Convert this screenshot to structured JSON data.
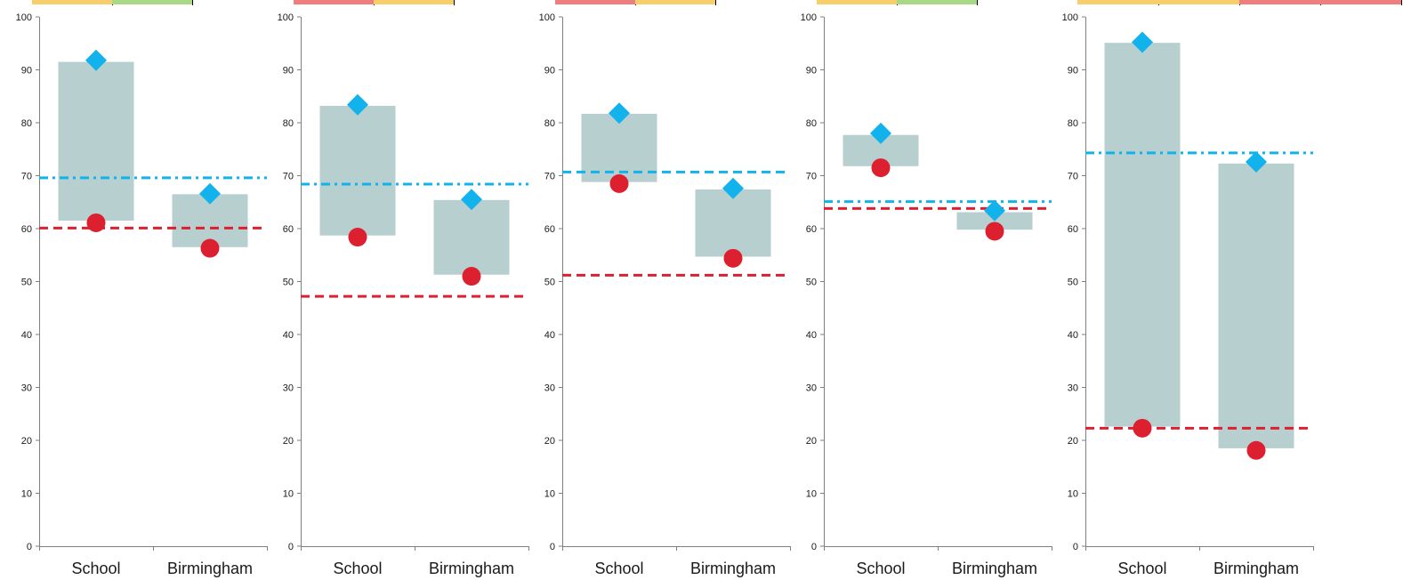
{
  "colors": {
    "range_fill": "#b7cfcf",
    "diamond": "#12b3ec",
    "circle": "#dd2030",
    "blue_line": "#12b3ec",
    "red_line": "#dd2030",
    "axis": "#7f7f7f",
    "text": "#1a1a1a",
    "status_red": "#ef7f7f",
    "status_amber": "#f8cd6b",
    "status_green": "#aad985"
  },
  "chart_data": [
    {
      "type": "range-bar",
      "categories": [
        "School",
        "Birmingham"
      ],
      "ylim": [
        0,
        100
      ],
      "yticks": [
        0,
        10,
        20,
        30,
        40,
        50,
        60,
        70,
        80,
        90,
        100
      ],
      "ranges": [
        [
          61.5,
          91.5
        ],
        [
          56.5,
          66.5
        ]
      ],
      "diamond_values": [
        91.8,
        66.6
      ],
      "circle_values": [
        61.1,
        56.3
      ],
      "blue_dashdot_line": 69.6,
      "red_dashed_line": 60.1,
      "status_cells": [
        "amber",
        "green"
      ]
    },
    {
      "type": "range-bar",
      "categories": [
        "School",
        "Birmingham"
      ],
      "ylim": [
        0,
        100
      ],
      "yticks": [
        0,
        10,
        20,
        30,
        40,
        50,
        60,
        70,
        80,
        90,
        100
      ],
      "ranges": [
        [
          58.7,
          83.2
        ],
        [
          51.3,
          65.4
        ]
      ],
      "diamond_values": [
        83.4,
        65.5
      ],
      "circle_values": [
        58.4,
        51.0
      ],
      "blue_dashdot_line": 68.4,
      "red_dashed_line": 47.2,
      "status_cells": [
        "red",
        "amber"
      ]
    },
    {
      "type": "range-bar",
      "categories": [
        "School",
        "Birmingham"
      ],
      "ylim": [
        0,
        100
      ],
      "yticks": [
        0,
        10,
        20,
        30,
        40,
        50,
        60,
        70,
        80,
        90,
        100
      ],
      "ranges": [
        [
          68.8,
          81.7
        ],
        [
          54.7,
          67.4
        ]
      ],
      "diamond_values": [
        81.8,
        67.6
      ],
      "circle_values": [
        68.5,
        54.4
      ],
      "blue_dashed_line": 70.7,
      "red_dashed_line": 51.2,
      "status_cells": [
        "red",
        "amber"
      ]
    },
    {
      "type": "range-bar",
      "categories": [
        "School",
        "Birmingham"
      ],
      "ylim": [
        0,
        100
      ],
      "yticks": [
        0,
        10,
        20,
        30,
        40,
        50,
        60,
        70,
        80,
        90,
        100
      ],
      "ranges": [
        [
          71.8,
          77.7
        ],
        [
          59.8,
          63.1
        ]
      ],
      "diamond_values": [
        78.0,
        63.4
      ],
      "circle_values": [
        71.5,
        59.5
      ],
      "blue_dashdot_line": 65.1,
      "red_dashed_line": 63.8,
      "status_cells": [
        "amber",
        "green"
      ]
    },
    {
      "type": "range-bar",
      "categories": [
        "School",
        "Birmingham"
      ],
      "ylim": [
        0,
        100
      ],
      "yticks": [
        0,
        10,
        20,
        30,
        40,
        50,
        60,
        70,
        80,
        90,
        100
      ],
      "ranges": [
        [
          22.6,
          95.1
        ],
        [
          18.5,
          72.3
        ]
      ],
      "diamond_values": [
        95.2,
        72.6
      ],
      "circle_values": [
        22.3,
        18.1
      ],
      "blue_dashdot_line": 74.3,
      "red_dashed_line": 22.3,
      "status_cells": [
        "amber",
        "amber",
        "red",
        "red"
      ]
    }
  ]
}
